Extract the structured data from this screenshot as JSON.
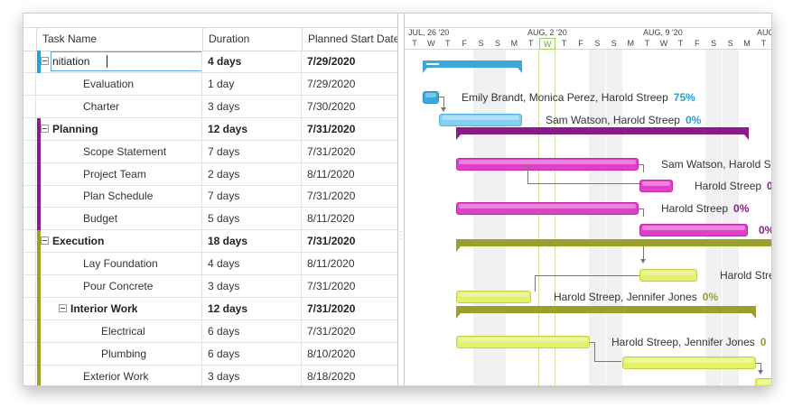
{
  "grid": {
    "columns": {
      "name": "Task Name",
      "duration": "Duration",
      "start": "Planned Start Date"
    },
    "rows": [
      {
        "name": "nitiation",
        "duration": "4 days",
        "start": "7/29/2020",
        "summary": true,
        "editing": true,
        "color": "#2a9fd6"
      },
      {
        "name": "Evaluation",
        "duration": "1 day",
        "start": "7/29/2020",
        "summary": false
      },
      {
        "name": "Charter",
        "duration": "3 days",
        "start": "7/30/2020",
        "summary": false
      },
      {
        "name": "Planning",
        "duration": "12 days",
        "start": "7/31/2020",
        "summary": true,
        "color": "#8b1a8b"
      },
      {
        "name": "Scope Statement",
        "duration": "7 days",
        "start": "7/31/2020",
        "summary": false,
        "color": "#8b1a8b"
      },
      {
        "name": "Project Team",
        "duration": "2 days",
        "start": "8/11/2020",
        "summary": false,
        "color": "#8b1a8b"
      },
      {
        "name": "Plan Schedule",
        "duration": "7 days",
        "start": "7/31/2020",
        "summary": false,
        "color": "#8b1a8b"
      },
      {
        "name": "Budget",
        "duration": "5 days",
        "start": "8/11/2020",
        "summary": false,
        "color": "#8b1a8b"
      },
      {
        "name": "Execution",
        "duration": "18 days",
        "start": "7/31/2020",
        "summary": true,
        "color": "#9aa02a"
      },
      {
        "name": "Lay Foundation",
        "duration": "4 days",
        "start": "8/11/2020",
        "summary": false,
        "color": "#9aa02a"
      },
      {
        "name": "Pour Concrete",
        "duration": "3 days",
        "start": "7/31/2020",
        "summary": false,
        "color": "#9aa02a"
      },
      {
        "name": "Interior Work",
        "duration": "12 days",
        "start": "7/31/2020",
        "summary": true,
        "color": "#9aa02a"
      },
      {
        "name": "Electrical",
        "duration": "6 days",
        "start": "7/31/2020",
        "summary": false,
        "color": "#9aa02a"
      },
      {
        "name": "Plumbing",
        "duration": "6 days",
        "start": "8/10/2020",
        "summary": false,
        "color": "#9aa02a"
      },
      {
        "name": "Exterior Work",
        "duration": "3 days",
        "start": "8/18/2020",
        "summary": false,
        "color": "#9aa02a"
      }
    ]
  },
  "timeline": {
    "weeks": [
      "JUL, 26 '20",
      "AUG, 2 '20",
      "AUG, 9 '20",
      "AUG"
    ],
    "days": [
      "T",
      "W",
      "T",
      "F",
      "S",
      "S",
      "M",
      "T",
      "W",
      "T",
      "F",
      "S",
      "S",
      "M",
      "T",
      "W",
      "T",
      "F",
      "S",
      "S",
      "M",
      "T"
    ],
    "highlight_day": "W"
  },
  "gantt": {
    "bars": [
      {
        "row": 1,
        "label": "Emily Brandt, Monica Perez, Harold Streep",
        "pct": "75%",
        "pct_color": "#2a9fd6"
      },
      {
        "row": 2,
        "label": "Sam Watson, Harold Streep",
        "pct": "0%",
        "pct_color": "#2a9fd6"
      },
      {
        "row": 4,
        "label": "Sam Watson, Harold St"
      },
      {
        "row": 5,
        "label": "Harold Streep",
        "pct": "0",
        "pct_color": "#8b1a8b"
      },
      {
        "row": 6,
        "label": "Harold Streep",
        "pct": "0%",
        "pct_color": "#8b1a8b"
      },
      {
        "row": 7,
        "label": "",
        "pct": "0%",
        "pct_color": "#8b1a8b"
      },
      {
        "row": 9,
        "label": "Harold Stre"
      },
      {
        "row": 10,
        "label": "Harold Streep, Jennifer Jones",
        "pct": "0%",
        "pct_color": "#9aa02a"
      },
      {
        "row": 12,
        "label": "Harold Streep, Jennifer Jones",
        "pct": "0",
        "pct_color": "#9aa02a"
      }
    ]
  },
  "colors": {
    "initiation": "#3aa8d8",
    "initiation_light": "#7fd0f2",
    "planning": "#8b1a8b",
    "planning_task": "#e040c8",
    "execution": "#9aa02a",
    "execution_task": "#e4f26a"
  }
}
